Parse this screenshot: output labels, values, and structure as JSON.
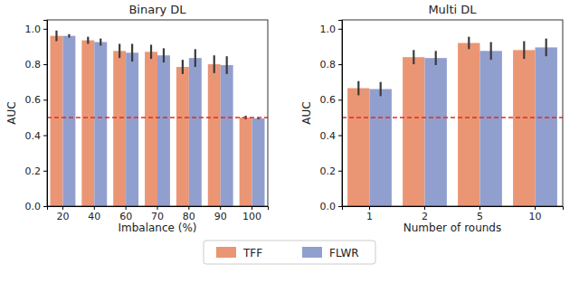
{
  "chart_data": [
    {
      "type": "bar",
      "title": "Binary DL",
      "x_label": "Imbalance (%)",
      "y_label": "AUC",
      "categories": [
        "20",
        "40",
        "60",
        "70",
        "80",
        "90",
        "100"
      ],
      "series": [
        {
          "name": "TFF",
          "color": "#ea9674",
          "values": [
            0.96,
            0.935,
            0.875,
            0.87,
            0.785,
            0.8,
            0.5
          ],
          "errors": [
            0.03,
            0.02,
            0.04,
            0.04,
            0.04,
            0.05,
            0.01
          ]
        },
        {
          "name": "FLWR",
          "color": "#919fcf",
          "values": [
            0.96,
            0.925,
            0.865,
            0.85,
            0.835,
            0.795,
            0.495
          ],
          "errors": [
            0.01,
            0.02,
            0.05,
            0.04,
            0.05,
            0.05,
            0.005
          ]
        }
      ],
      "hline": 0.5,
      "hline_color": "#e8281e",
      "ylim": [
        0,
        1.05
      ],
      "yticks": [
        {
          "value": 0,
          "label": "0.0"
        },
        {
          "value": 0.2,
          "label": "0.2"
        },
        {
          "value": 0.4,
          "label": "0.4"
        },
        {
          "value": 0.6,
          "label": "0.6"
        },
        {
          "value": 0.8,
          "label": "0.8"
        },
        {
          "value": 1,
          "label": "1.0"
        }
      ],
      "grid": false,
      "legend": "bottom"
    },
    {
      "type": "bar",
      "title": "Multi DL",
      "x_label": "Number of rounds",
      "y_label": "AUC",
      "categories": [
        "1",
        "2",
        "5",
        "10"
      ],
      "series": [
        {
          "name": "TFF",
          "color": "#ea9674",
          "values": [
            0.665,
            0.84,
            0.92,
            0.88
          ],
          "errors": [
            0.04,
            0.04,
            0.035,
            0.05
          ]
        },
        {
          "name": "FLWR",
          "color": "#919fcf",
          "values": [
            0.66,
            0.835,
            0.875,
            0.895
          ],
          "errors": [
            0.04,
            0.04,
            0.05,
            0.05
          ]
        }
      ],
      "hline": 0.5,
      "hline_color": "#e8281e",
      "ylim": [
        0,
        1.05
      ],
      "yticks": [
        {
          "value": 0,
          "label": "0.0"
        },
        {
          "value": 0.2,
          "label": "0.2"
        },
        {
          "value": 0.4,
          "label": "0.4"
        },
        {
          "value": 0.6,
          "label": "0.6"
        },
        {
          "value": 0.8,
          "label": "0.8"
        },
        {
          "value": 1,
          "label": "1.0"
        }
      ],
      "grid": false
    }
  ]
}
